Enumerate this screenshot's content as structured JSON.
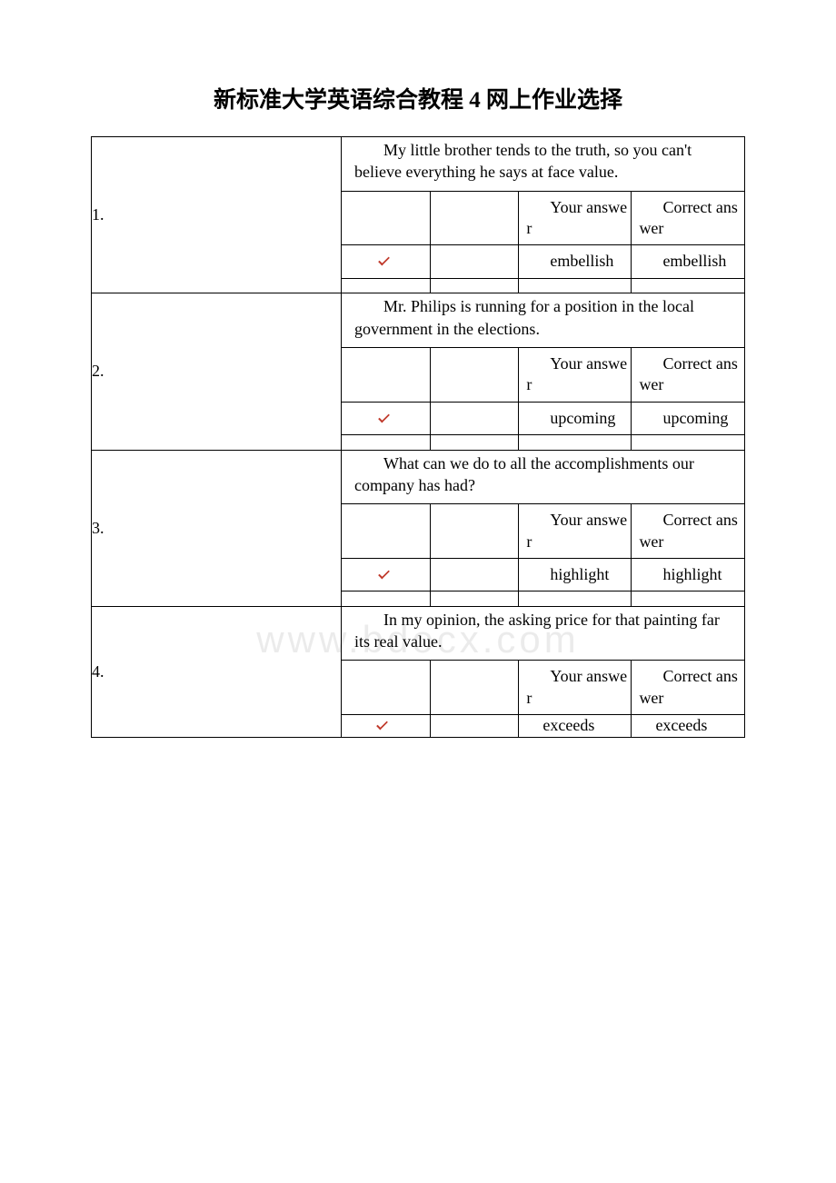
{
  "title": "新标准大学英语综合教程 4 网上作业选择",
  "watermark": "www.bdocx.com",
  "header_your": "Your answer",
  "header_correct": "Correct answer",
  "questions": [
    {
      "num": "1.",
      "text": "My little brother tends to  the truth, so you can't believe everything he says at face value.",
      "your": "embellish",
      "correct": "embellish"
    },
    {
      "num": "2.",
      "text": "Mr. Philips is running for a position in the local government in the  elections.",
      "your": "upcoming",
      "correct": "upcoming"
    },
    {
      "num": "3.",
      "text": "What can we do to  all the accomplishments our company has had?",
      "your": "highlight",
      "correct": "highlight"
    },
    {
      "num": "4.",
      "text": "In my opinion, the asking price for that painting far  its real value.",
      "your": "exceeds",
      "correct": "exceeds"
    }
  ]
}
